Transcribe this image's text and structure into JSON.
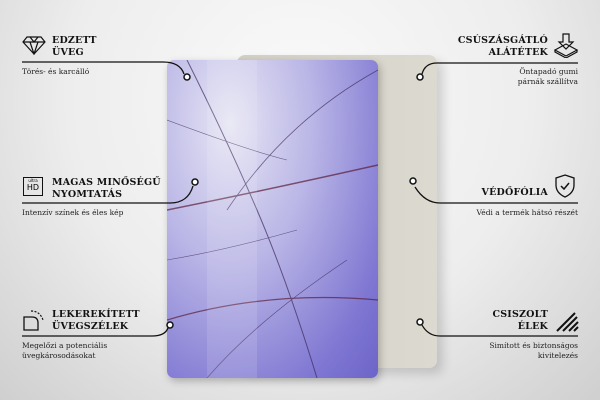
{
  "features_left": [
    {
      "title_lines": [
        "EDZETT",
        "ÜVEG"
      ],
      "description_lines": [
        "Törés- és karcálló"
      ],
      "icon": "diamond-icon"
    },
    {
      "title_lines": [
        "MAGAS MINŐSÉGŰ",
        "NYOMTATÁS"
      ],
      "description_lines": [
        "Intenzív színek és éles kép"
      ],
      "icon": "ultra-hd-icon",
      "icon_text": [
        "ultra",
        "HD"
      ]
    },
    {
      "title_lines": [
        "LEKEREKÍTETT",
        "ÜVEGSZÉLEK"
      ],
      "description_lines": [
        "Megelőzi a potenciális",
        "üvegkárosodásokat"
      ],
      "icon": "rounded-corner-icon"
    }
  ],
  "features_right": [
    {
      "title_lines": [
        "CSÚSZÁSGÁTLÓ",
        "ALÁTÉTEK"
      ],
      "description_lines": [
        "Öntapadó gumi",
        "párnák szállítva"
      ],
      "icon": "anti-slip-pad-icon"
    },
    {
      "title_lines": [
        "VÉDŐFÓLIA"
      ],
      "description_lines": [
        "Védi a termék hátsó részét"
      ],
      "icon": "shield-check-icon"
    },
    {
      "title_lines": [
        "CSISZOLT",
        "ÉLEK"
      ],
      "description_lines": [
        "Simított és biztonságos",
        "kivitelezés"
      ],
      "icon": "polished-edge-icon"
    }
  ],
  "colors": {
    "glass_print": "#7f77d2",
    "back_panel": "#d8d6cc",
    "line": "#111111"
  }
}
